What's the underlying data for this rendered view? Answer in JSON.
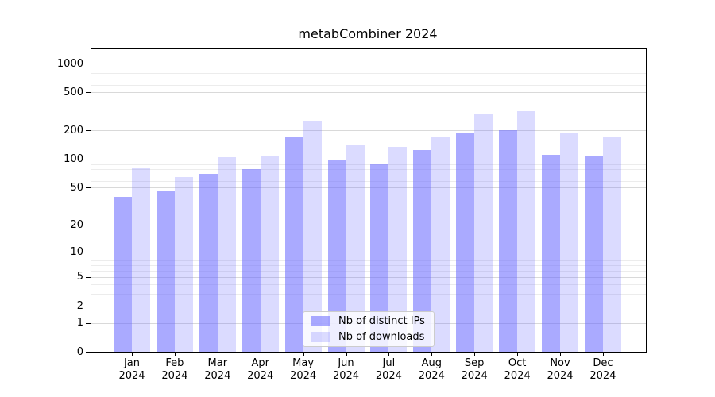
{
  "chart_data": {
    "type": "bar",
    "title": "metabCombiner 2024",
    "yscale": "log1p",
    "grid": true,
    "legend_position": "inside-bottom-center",
    "categories": [
      "Jan",
      "Feb",
      "Mar",
      "Apr",
      "May",
      "Jun",
      "Jul",
      "Aug",
      "Sep",
      "Oct",
      "Nov",
      "Dec"
    ],
    "year_label": "2024",
    "yticks": [
      0,
      1,
      2,
      5,
      10,
      20,
      50,
      100,
      200,
      500,
      1000
    ],
    "ylim": [
      0,
      1400
    ],
    "series": [
      {
        "name": "Nb of distinct IPs",
        "color": "#6666ff",
        "alpha": 0.556,
        "values": [
          40,
          47,
          70,
          79,
          170,
          100,
          90,
          124,
          187,
          200,
          112,
          107
        ]
      },
      {
        "name": "Nb of downloads",
        "color": "#6666ff",
        "alpha": 0.235,
        "values": [
          80,
          65,
          106,
          109,
          250,
          140,
          135,
          170,
          294,
          320,
          185,
          174
        ]
      }
    ]
  },
  "colors": {
    "bar_dark_rendered": "#aaaafc",
    "bar_light_rendered": "#dbdbfb",
    "gridline_major": "#c3c3c3",
    "gridline_labeled": "#d9d9d9",
    "gridline_minor": "#ececec",
    "legend_border": "#cccccc",
    "text": "#000000"
  }
}
